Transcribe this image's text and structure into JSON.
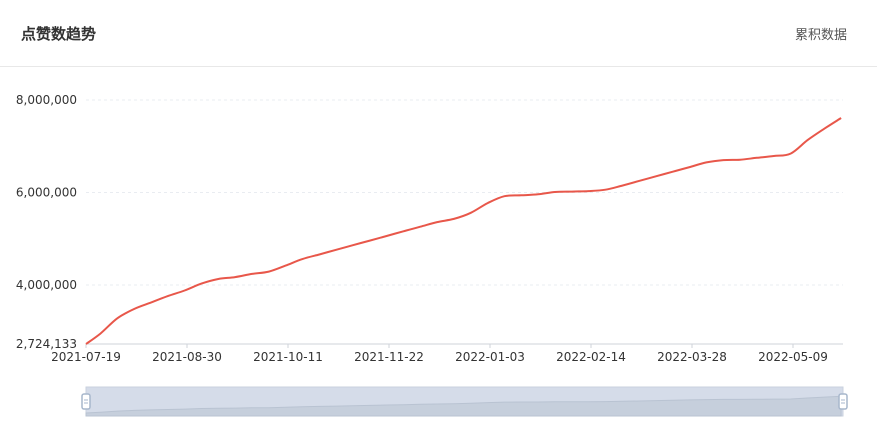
{
  "header": {
    "title": "点赞数趋势",
    "mode_label": "累积数据"
  },
  "chart_data": {
    "type": "line",
    "title": "点赞数趋势",
    "xlabel": "",
    "ylabel": "",
    "y_tick_labels": [
      "2,724,133",
      "4,000,000",
      "6,000,000",
      "8,000,000"
    ],
    "y_ticks": [
      2724133,
      4000000,
      6000000,
      8000000
    ],
    "ylim": [
      2724133,
      8000000
    ],
    "x_tick_labels": [
      "2021-07-19",
      "2021-08-30",
      "2021-10-11",
      "2021-11-22",
      "2022-01-03",
      "2022-02-14",
      "2022-03-28",
      "2022-05-09"
    ],
    "grid": true,
    "line_color": "#e8574a",
    "series": [
      {
        "x": [
          "2021-07-19",
          "2021-07-25",
          "2021-08-01",
          "2021-08-08",
          "2021-08-15",
          "2021-08-22",
          "2021-08-29",
          "2021-09-05",
          "2021-09-12",
          "2021-09-19",
          "2021-09-26",
          "2021-10-03",
          "2021-10-10",
          "2021-10-17",
          "2021-10-24",
          "2021-10-31",
          "2021-11-07",
          "2021-11-14",
          "2021-11-21",
          "2021-11-28",
          "2021-12-05",
          "2021-12-12",
          "2021-12-19",
          "2021-12-26",
          "2022-01-02",
          "2022-01-09",
          "2022-01-16",
          "2022-01-23",
          "2022-01-30",
          "2022-02-06",
          "2022-02-13",
          "2022-02-20",
          "2022-02-27",
          "2022-03-06",
          "2022-03-13",
          "2022-03-20",
          "2022-03-27",
          "2022-04-03",
          "2022-04-10",
          "2022-04-17",
          "2022-04-24",
          "2022-05-01",
          "2022-05-08",
          "2022-05-15",
          "2022-05-22",
          "2022-05-29"
        ],
        "values": [
          2724133,
          2950000,
          3280000,
          3480000,
          3620000,
          3760000,
          3880000,
          4030000,
          4130000,
          4170000,
          4240000,
          4290000,
          4420000,
          4560000,
          4660000,
          4760000,
          4860000,
          4960000,
          5060000,
          5160000,
          5260000,
          5360000,
          5430000,
          5560000,
          5770000,
          5920000,
          5940000,
          5960000,
          6010000,
          6020000,
          6030000,
          6060000,
          6150000,
          6250000,
          6350000,
          6450000,
          6550000,
          6650000,
          6700000,
          6710000,
          6750000,
          6790000,
          6840000,
          7130000,
          7380000,
          7610000
        ]
      }
    ]
  },
  "zoom_slider": {
    "fill_color": "#d5dce9",
    "handle_color": "#a7b7cc"
  }
}
